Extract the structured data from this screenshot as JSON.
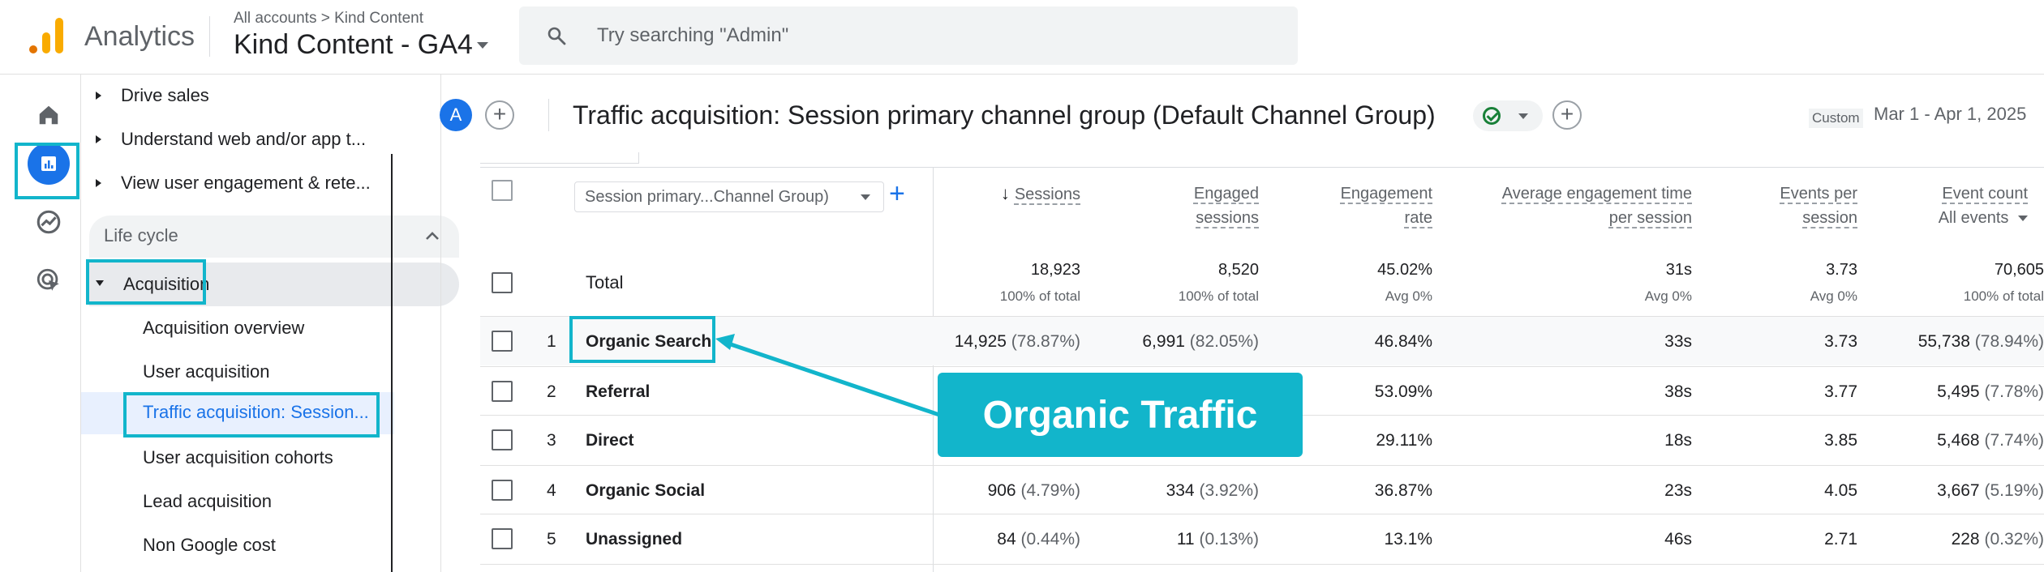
{
  "header": {
    "app_name": "Analytics",
    "breadcrumb_all": "All accounts",
    "breadcrumb_sep": ">",
    "breadcrumb_account": "Kind Content",
    "property_name": "Kind Content - GA4",
    "search_placeholder": "Try searching \"Admin\""
  },
  "rail": {
    "items": [
      {
        "name": "home-icon",
        "active": false
      },
      {
        "name": "reports-icon",
        "active": true
      },
      {
        "name": "explore-icon",
        "active": false
      },
      {
        "name": "advertising-icon",
        "active": false
      }
    ]
  },
  "sidebar": {
    "collection_items": [
      {
        "label": "Drive sales"
      },
      {
        "label": "Understand web and/or app t..."
      },
      {
        "label": "View user engagement & rete..."
      }
    ],
    "section_label": "Life cycle",
    "group_label": "Acquisition",
    "sub_items": [
      {
        "label": "Acquisition overview",
        "active": false
      },
      {
        "label": "User acquisition",
        "active": false
      },
      {
        "label": "Traffic acquisition: Session...",
        "active": true
      },
      {
        "label": "User acquisition cohorts",
        "active": false
      },
      {
        "label": "Lead acquisition",
        "active": false
      },
      {
        "label": "Non Google cost",
        "active": false
      }
    ]
  },
  "report": {
    "avatar_letter": "A",
    "title": "Traffic acquisition: Session primary channel group (Default Channel Group)",
    "date_label": "Custom",
    "date_range": "Mar 1 - Apr 1, 2025"
  },
  "table": {
    "dimension_select": "Session primary...Channel Group)",
    "columns": [
      {
        "line1": "Sessions",
        "line2": "",
        "sorted": true
      },
      {
        "line1": "Engaged",
        "line2": "sessions",
        "sorted": false
      },
      {
        "line1": "Engagement",
        "line2": "rate",
        "sorted": false
      },
      {
        "line1": "Average engagement time",
        "line2": "per session",
        "sorted": false
      },
      {
        "line1": "Events per",
        "line2": "session",
        "sorted": false
      },
      {
        "line1": "Event count",
        "line2": "All events",
        "sorted": false
      }
    ],
    "total": {
      "label": "Total",
      "values": [
        "18,923",
        "8,520",
        "45.02%",
        "31s",
        "3.73",
        "70,605"
      ],
      "subs": [
        "100% of total",
        "100% of total",
        "Avg 0%",
        "Avg 0%",
        "Avg 0%",
        "100% of total"
      ]
    },
    "rows": [
      {
        "num": "1",
        "name": "Organic Search",
        "sessions": "14,925",
        "sessions_pct": "(78.87%)",
        "engaged": "6,991",
        "engaged_pct": "(82.05%)",
        "rate": "46.84%",
        "time": "33s",
        "eps": "3.73",
        "events": "55,738",
        "events_pct": "(78.94%)"
      },
      {
        "num": "2",
        "name": "Referral",
        "sessions": "",
        "sessions_pct": "",
        "engaged": "",
        "engaged_pct": "",
        "rate": "53.09%",
        "time": "38s",
        "eps": "3.77",
        "events": "5,495",
        "events_pct": "(7.78%)"
      },
      {
        "num": "3",
        "name": "Direct",
        "sessions": "",
        "sessions_pct": "",
        "engaged": "",
        "engaged_pct": "",
        "rate": "29.11%",
        "time": "18s",
        "eps": "3.85",
        "events": "5,468",
        "events_pct": "(7.74%)"
      },
      {
        "num": "4",
        "name": "Organic Social",
        "sessions": "906",
        "sessions_pct": "(4.79%)",
        "engaged": "334",
        "engaged_pct": "(3.92%)",
        "rate": "36.87%",
        "time": "23s",
        "eps": "4.05",
        "events": "3,667",
        "events_pct": "(5.19%)"
      },
      {
        "num": "5",
        "name": "Unassigned",
        "sessions": "84",
        "sessions_pct": "(0.44%)",
        "engaged": "11",
        "engaged_pct": "(0.13%)",
        "rate": "13.1%",
        "time": "46s",
        "eps": "2.71",
        "events": "228",
        "events_pct": "(0.32%)"
      }
    ]
  },
  "annotation": {
    "label": "Organic Traffic",
    "color": "#12b5cb"
  },
  "colors": {
    "accent": "#1a73e8",
    "highlight": "#12b5cb",
    "logo_orange": "#E37400",
    "logo_yellow": "#F9AB00"
  }
}
